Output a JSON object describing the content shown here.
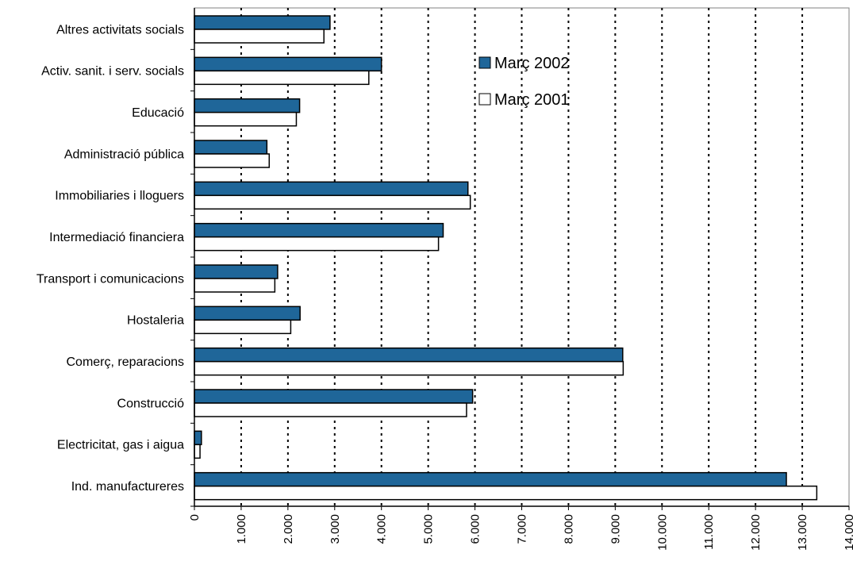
{
  "chart_data": {
    "type": "bar",
    "orientation": "horizontal",
    "categories": [
      "Altres activitats socials",
      "Activ. sanit. i serv. socials",
      "Educació",
      "Administració pública",
      "Immobiliaries i lloguers",
      "Intermediació financiera",
      "Transport i comunicacions",
      "Hostaleria",
      "Comerç, reparacions",
      "Construcció",
      "Electricitat, gas i aigua",
      "Ind. manufactureres"
    ],
    "series": [
      {
        "name": "Març 2002",
        "color": "#1f6699",
        "values": [
          2900,
          4000,
          2250,
          1550,
          5850,
          5320,
          1780,
          2260,
          9160,
          5950,
          150,
          12660
        ]
      },
      {
        "name": "Març 2001",
        "color": "#ffffff",
        "values": [
          2770,
          3730,
          2180,
          1600,
          5900,
          5220,
          1720,
          2060,
          9170,
          5820,
          120,
          13310
        ]
      }
    ],
    "xlim": [
      0,
      14000
    ],
    "xticks": [
      0,
      1000,
      2000,
      3000,
      4000,
      5000,
      6000,
      7000,
      8000,
      9000,
      10000,
      11000,
      12000,
      13000,
      14000
    ],
    "xtick_labels": [
      "0",
      "1.000",
      "2.000",
      "3.000",
      "4.000",
      "5.000",
      "6.000",
      "7.000",
      "8.000",
      "9.000",
      "10.000",
      "11.000",
      "12.000",
      "13.000",
      "14.000"
    ],
    "grid": "vertical dotted",
    "legend_position": "top-right inside plot",
    "title": "",
    "xlabel": "",
    "ylabel": ""
  }
}
